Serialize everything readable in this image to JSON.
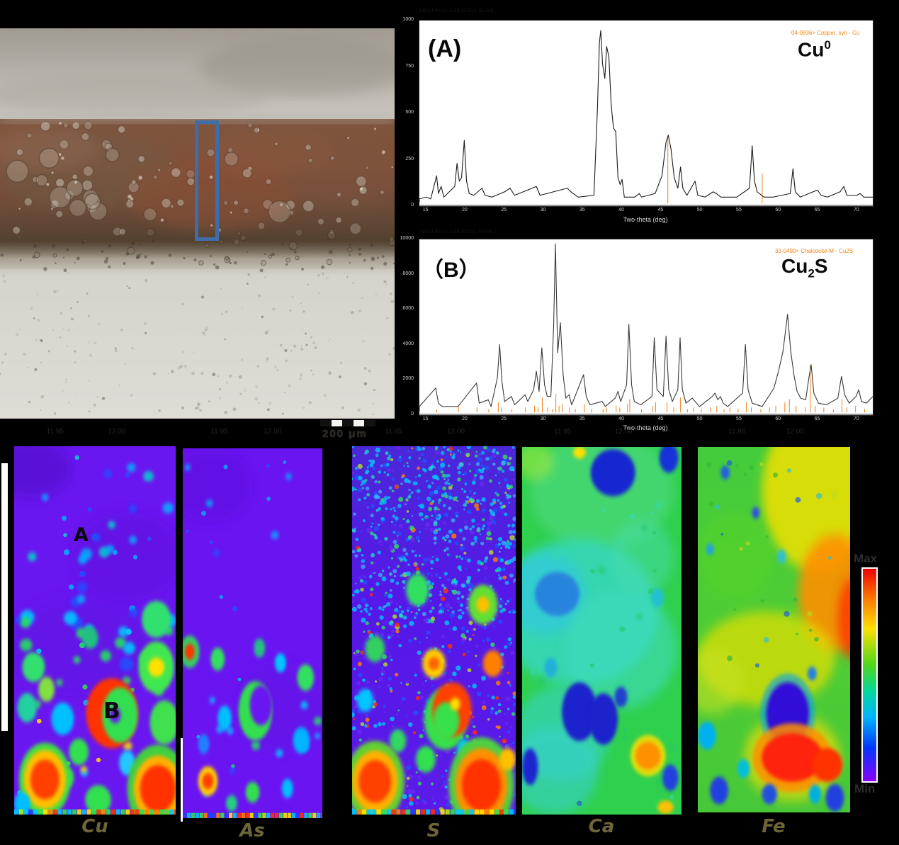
{
  "photo": {
    "scale_bar_label": "200 μm"
  },
  "xrd_a": {
    "header_text": "(Bolliboy) 236J0011 B269",
    "panel_label": "(A)",
    "phase_base": "Cu",
    "phase_sup": "0",
    "ref_text": "04-0836> Copper, syn - Cu",
    "xlabel": "Two-theta (deg)",
    "yticks": [
      "1000",
      "750",
      "500",
      "250",
      "0"
    ],
    "xticks": [
      "15",
      "20",
      "25",
      "30",
      "35",
      "40",
      "45",
      "50",
      "55",
      "60",
      "65",
      "70"
    ]
  },
  "xrd_b": {
    "header_text": "(Bolliboy) 236J0011 P0967",
    "panel_label": "（B）",
    "phase_pre": "Cu",
    "phase_sub": "2",
    "phase_post": "S",
    "ref_text": "33-0490> Chalcocite-M - Cu2S",
    "xlabel": "Two-theta (deg)",
    "yticks": [
      "10000",
      "8000",
      "6000",
      "4000",
      "2000",
      "0"
    ],
    "xticks": [
      "15",
      "20",
      "25",
      "30",
      "35",
      "40",
      "45",
      "50",
      "55",
      "60",
      "65",
      "70"
    ]
  },
  "maps": {
    "items": [
      {
        "label": "Cu"
      },
      {
        "label": "As"
      },
      {
        "label": "S"
      },
      {
        "label": "Ca"
      },
      {
        "label": "Fe"
      }
    ],
    "annotation_a": "A",
    "annotation_b": "B",
    "faint_headers": [
      "11.95",
      "12.00"
    ]
  },
  "colorbar": {
    "max_label": "Max",
    "min_label": "Min"
  },
  "chart_data": [
    {
      "id": "A",
      "type": "line",
      "title": "XRD pattern, phase Cu0 (copper metal)",
      "reference_card": "04-0836> Copper, syn - Cu",
      "xlabel": "Two-theta (deg)",
      "x_ticks": [
        15,
        20,
        25,
        30,
        35,
        40,
        45,
        50,
        55,
        60,
        65,
        70
      ],
      "y_ticks": [
        1000,
        750,
        500,
        250,
        0
      ],
      "grid": false,
      "legend": "none",
      "trace": [
        [
          0,
          2
        ],
        [
          1.5,
          3
        ],
        [
          2.5,
          2
        ],
        [
          3.8,
          15
        ],
        [
          4.2,
          5
        ],
        [
          4.8,
          9
        ],
        [
          5.4,
          3
        ],
        [
          7.8,
          9
        ],
        [
          8.3,
          22
        ],
        [
          8.8,
          12
        ],
        [
          9.3,
          14
        ],
        [
          9.9,
          35
        ],
        [
          10.4,
          12
        ],
        [
          11,
          5
        ],
        [
          12,
          4
        ],
        [
          13.8,
          8
        ],
        [
          14.5,
          4
        ],
        [
          16,
          3
        ],
        [
          18.8,
          6
        ],
        [
          20,
          8
        ],
        [
          21,
          4
        ],
        [
          25.8,
          9
        ],
        [
          26.6,
          4
        ],
        [
          32.6,
          8
        ],
        [
          33.4,
          6
        ],
        [
          35,
          3
        ],
        [
          38.5,
          4
        ],
        [
          39.3,
          55
        ],
        [
          39.7,
          90
        ],
        [
          40,
          97
        ],
        [
          40.4,
          78
        ],
        [
          40.9,
          70
        ],
        [
          41.3,
          88
        ],
        [
          41.8,
          82
        ],
        [
          42.3,
          55
        ],
        [
          42.8,
          42
        ],
        [
          43.3,
          40
        ],
        [
          43.8,
          14
        ],
        [
          44.3,
          10
        ],
        [
          44.7,
          13
        ],
        [
          45.2,
          3
        ],
        [
          47.5,
          3
        ],
        [
          48.5,
          5
        ],
        [
          49,
          3
        ],
        [
          52,
          5
        ],
        [
          53.5,
          15
        ],
        [
          54.4,
          34
        ],
        [
          54.9,
          38
        ],
        [
          55.5,
          30
        ],
        [
          56.2,
          14
        ],
        [
          57,
          8
        ],
        [
          57.6,
          20
        ],
        [
          58.1,
          8
        ],
        [
          59,
          4
        ],
        [
          60.8,
          12
        ],
        [
          61.4,
          4
        ],
        [
          63,
          3
        ],
        [
          64.8,
          6
        ],
        [
          65.5,
          5
        ],
        [
          66.5,
          3
        ],
        [
          70,
          3
        ],
        [
          72.8,
          8
        ],
        [
          73.4,
          32
        ],
        [
          73.9,
          12
        ],
        [
          74.5,
          6
        ],
        [
          76,
          3
        ],
        [
          78,
          3
        ],
        [
          81.8,
          5
        ],
        [
          82.4,
          19
        ],
        [
          82.9,
          6
        ],
        [
          84,
          3
        ],
        [
          87.8,
          7
        ],
        [
          88.6,
          4
        ],
        [
          90,
          3
        ],
        [
          92.8,
          6
        ],
        [
          93.6,
          9
        ],
        [
          94.3,
          4
        ],
        [
          96.5,
          4
        ],
        [
          97.2,
          5
        ],
        [
          98,
          3
        ],
        [
          100,
          3
        ]
      ],
      "ref_sticks": [
        [
          54.8,
          37
        ],
        [
          75.6,
          17
        ]
      ]
    },
    {
      "id": "B",
      "type": "line",
      "title": "XRD pattern, phase Cu2S (chalcocite)",
      "reference_card": "33-0490> Chalcocite-M - Cu2S",
      "xlabel": "Two-theta (deg)",
      "x_ticks": [
        15,
        20,
        25,
        30,
        35,
        40,
        45,
        50,
        55,
        60,
        65,
        70
      ],
      "y_ticks": [
        10000,
        8000,
        6000,
        4000,
        2000,
        0
      ],
      "grid": false,
      "legend": "none",
      "trace": [
        [
          0,
          3
        ],
        [
          3.6,
          14
        ],
        [
          4.2,
          5
        ],
        [
          5,
          3
        ],
        [
          8.5,
          3
        ],
        [
          12.6,
          17
        ],
        [
          13.2,
          5
        ],
        [
          15.2,
          7
        ],
        [
          15.8,
          3
        ],
        [
          17.2,
          20
        ],
        [
          17.7,
          40
        ],
        [
          18.2,
          18
        ],
        [
          18.8,
          6
        ],
        [
          20.3,
          9
        ],
        [
          21,
          4
        ],
        [
          23.3,
          10
        ],
        [
          23.9,
          6
        ],
        [
          25.2,
          13
        ],
        [
          25.8,
          24
        ],
        [
          26.4,
          12
        ],
        [
          27,
          38
        ],
        [
          27.6,
          16
        ],
        [
          28.2,
          9
        ],
        [
          29,
          9
        ],
        [
          29.6,
          50
        ],
        [
          30,
          100
        ],
        [
          30.5,
          35
        ],
        [
          31.1,
          53
        ],
        [
          31.7,
          22
        ],
        [
          32.3,
          8
        ],
        [
          33,
          10
        ],
        [
          33.6,
          4
        ],
        [
          36.2,
          22
        ],
        [
          36.8,
          9
        ],
        [
          37.6,
          4
        ],
        [
          40.3,
          6
        ],
        [
          41,
          3
        ],
        [
          43.2,
          8
        ],
        [
          43.8,
          12
        ],
        [
          44.4,
          6
        ],
        [
          45.7,
          16
        ],
        [
          46.2,
          52
        ],
        [
          46.8,
          16
        ],
        [
          47.4,
          6
        ],
        [
          48.8,
          4
        ],
        [
          51.3,
          9
        ],
        [
          51.8,
          44
        ],
        [
          52.4,
          13
        ],
        [
          53.8,
          9
        ],
        [
          54.4,
          45
        ],
        [
          55,
          13
        ],
        [
          55.8,
          6
        ],
        [
          57,
          13
        ],
        [
          57.5,
          44
        ],
        [
          58,
          13
        ],
        [
          58.8,
          5
        ],
        [
          60.2,
          8
        ],
        [
          60.8,
          6
        ],
        [
          61.8,
          3
        ],
        [
          64.6,
          9
        ],
        [
          65.2,
          11
        ],
        [
          65.8,
          7
        ],
        [
          66.4,
          9
        ],
        [
          67,
          5
        ],
        [
          68,
          3
        ],
        [
          71.3,
          11
        ],
        [
          71.9,
          40
        ],
        [
          72.5,
          13
        ],
        [
          73.4,
          5
        ],
        [
          75.6,
          3
        ],
        [
          78.2,
          14
        ],
        [
          79.2,
          24
        ],
        [
          80.2,
          36
        ],
        [
          81.2,
          58
        ],
        [
          81.9,
          36
        ],
        [
          82.6,
          22
        ],
        [
          83.3,
          12
        ],
        [
          84.1,
          8
        ],
        [
          85.2,
          7
        ],
        [
          85.9,
          20
        ],
        [
          86.4,
          28
        ],
        [
          87,
          11
        ],
        [
          88,
          5
        ],
        [
          89.8,
          4
        ],
        [
          92.3,
          8
        ],
        [
          93.1,
          21
        ],
        [
          93.8,
          10
        ],
        [
          94.8,
          5
        ],
        [
          96.3,
          9
        ],
        [
          96.9,
          13
        ],
        [
          97.5,
          6
        ],
        [
          98.6,
          5
        ],
        [
          100,
          9
        ]
      ],
      "ref_sticks": [
        [
          3.8,
          2
        ],
        [
          8.6,
          4
        ],
        [
          12.7,
          3
        ],
        [
          15.3,
          2
        ],
        [
          17.4,
          6
        ],
        [
          18.1,
          3
        ],
        [
          20.4,
          2
        ],
        [
          23.4,
          3
        ],
        [
          25.4,
          4
        ],
        [
          26.2,
          3
        ],
        [
          27.1,
          9
        ],
        [
          28.3,
          3
        ],
        [
          29.3,
          2
        ],
        [
          30.1,
          11
        ],
        [
          30.8,
          4
        ],
        [
          31.5,
          5
        ],
        [
          33.1,
          3
        ],
        [
          34.4,
          2
        ],
        [
          36.4,
          5
        ],
        [
          38,
          2
        ],
        [
          40.5,
          2
        ],
        [
          41.3,
          3
        ],
        [
          43.4,
          4
        ],
        [
          44.2,
          3
        ],
        [
          45.9,
          5
        ],
        [
          46.4,
          8
        ],
        [
          49,
          2
        ],
        [
          51.5,
          4
        ],
        [
          52.1,
          6
        ],
        [
          54.6,
          6
        ],
        [
          56.1,
          3
        ],
        [
          57.6,
          9
        ],
        [
          59.1,
          2
        ],
        [
          60.5,
          3
        ],
        [
          62.2,
          2
        ],
        [
          64.2,
          3
        ],
        [
          65.6,
          4
        ],
        [
          67.2,
          2
        ],
        [
          68.5,
          3
        ],
        [
          70.3,
          2
        ],
        [
          72.1,
          6
        ],
        [
          73.2,
          3
        ],
        [
          75.3,
          2
        ],
        [
          77.2,
          3
        ],
        [
          78.6,
          4
        ],
        [
          80.6,
          6
        ],
        [
          81.6,
          8
        ],
        [
          83.1,
          4
        ],
        [
          85.1,
          3
        ],
        [
          86.2,
          28
        ],
        [
          87.3,
          4
        ],
        [
          89.2,
          3
        ],
        [
          91.3,
          2
        ],
        [
          93.2,
          8
        ],
        [
          94.3,
          3
        ],
        [
          96.2,
          4
        ],
        [
          98.2,
          2
        ]
      ]
    },
    {
      "id": "EDS-maps",
      "type": "heatmap",
      "panels": [
        "Cu",
        "As",
        "S",
        "Ca",
        "Fe"
      ],
      "annotations": [
        "A",
        "B"
      ],
      "scale": {
        "max": "Max",
        "min": "Min"
      }
    }
  ]
}
